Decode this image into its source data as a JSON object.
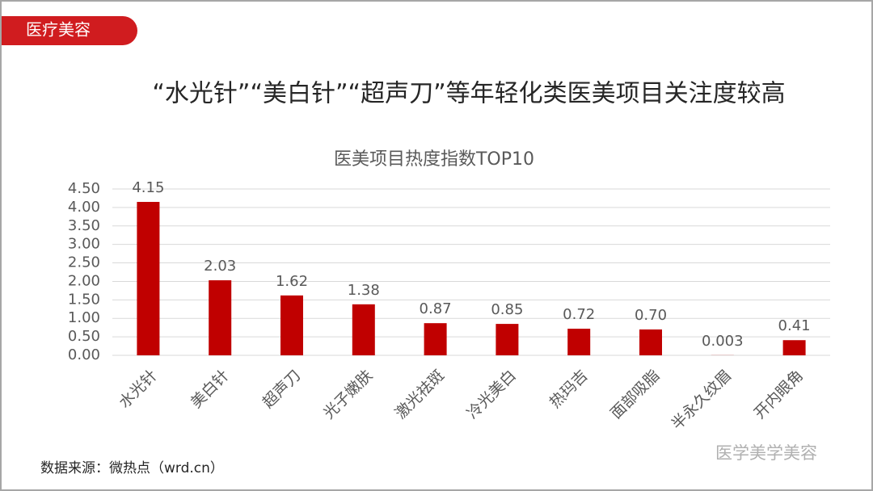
{
  "header": {
    "tag": "医疗美容",
    "title": "“水光针”“美白针”“超声刀”等年轻化类医美项目关注度较高"
  },
  "chart_data": {
    "type": "bar",
    "title": "医美项目热度指数TOP10",
    "categories": [
      "水光针",
      "美白针",
      "超声刀",
      "光子嫩肤",
      "激光祛斑",
      "冷光美白",
      "热玛吉",
      "面部吸脂",
      "半永久纹眉",
      "开内眼角"
    ],
    "values": [
      4.15,
      2.03,
      1.62,
      1.38,
      0.87,
      0.85,
      0.72,
      0.7,
      0.003,
      0.41
    ],
    "value_labels": [
      "4.15",
      "2.03",
      "1.62",
      "1.38",
      "0.87",
      "0.85",
      "0.72",
      "0.70",
      "0.003",
      "0.41"
    ],
    "color": "#c00000",
    "ylim": [
      0,
      4.5
    ],
    "yticks": [
      {
        "value": 0,
        "label": "0.00"
      },
      {
        "value": 0.5,
        "label": "0.50"
      },
      {
        "value": 1,
        "label": "1.00"
      },
      {
        "value": 1.5,
        "label": "1.50"
      },
      {
        "value": 2,
        "label": "2.00"
      },
      {
        "value": 2.5,
        "label": "2.50"
      },
      {
        "value": 3,
        "label": "3.00"
      },
      {
        "value": 3.5,
        "label": "3.50"
      },
      {
        "value": 4,
        "label": "4.00"
      },
      {
        "value": 4.5,
        "label": "4.50"
      }
    ],
    "grid": true
  },
  "footer": {
    "source": "数据来源：微热点（wrd.cn）",
    "watermark": "医学美学美容"
  }
}
